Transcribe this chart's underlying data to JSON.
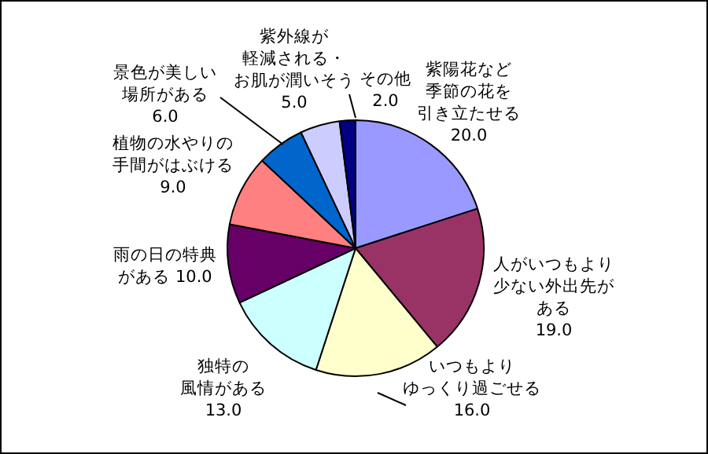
{
  "chart_data": {
    "type": "pie",
    "categories": [
      "紫陽花など季節の花を引き立たせる",
      "人がいつもより少ない外出先がある",
      "いつもよりゆっくり過ごせる",
      "独特の風情がある",
      "雨の日の特典がある",
      "植物の水やりの手間がはぶける",
      "景色が美しい場所がある",
      "紫外線が軽減される・お肌が潤いそう",
      "その他"
    ],
    "values": [
      20,
      19,
      16,
      13,
      10,
      9,
      6,
      5,
      2
    ],
    "value_labels": [
      "20.0",
      "19.0",
      "16.0",
      "13.0",
      "10.0",
      "9.0",
      "6.0",
      "5.0",
      "2.0"
    ],
    "colors": [
      "#9999ff",
      "#993366",
      "#ffffcc",
      "#ccffff",
      "#660066",
      "#ff8080",
      "#0066cc",
      "#ccccff",
      "#000080"
    ],
    "legend": false
  }
}
